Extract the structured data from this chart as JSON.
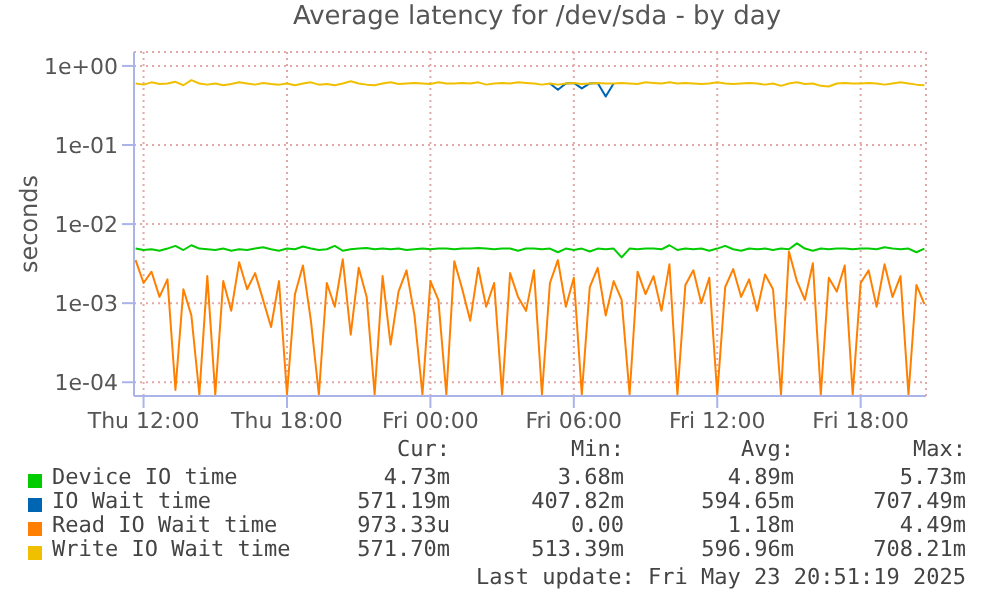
{
  "chart_data": {
    "type": "line",
    "title": "Average latency for /dev/sda - by day",
    "ylabel": "seconds",
    "log": "y",
    "grid": true,
    "legend": "bottom",
    "marker": "none",
    "line_style": "solid",
    "xlim": [
      "2025-05-22T11:36",
      "2025-05-23T20:44"
    ],
    "xticks": [
      {
        "value": "2025-05-22T12:00",
        "label": "Thu 12:00"
      },
      {
        "value": "2025-05-22T18:00",
        "label": "Thu 18:00"
      },
      {
        "value": "2025-05-23T00:00",
        "label": "Fri 00:00"
      },
      {
        "value": "2025-05-23T06:00",
        "label": "Fri 06:00"
      },
      {
        "value": "2025-05-23T12:00",
        "label": "Fri 12:00"
      },
      {
        "value": "2025-05-23T18:00",
        "label": "Fri 18:00"
      }
    ],
    "ylim": [
      6.7e-05,
      1.5
    ],
    "yticks": [
      {
        "value": 1,
        "label": "1e+00"
      },
      {
        "value": 0.1,
        "label": "1e-01"
      },
      {
        "value": 0.01,
        "label": "1e-02"
      },
      {
        "value": 0.001,
        "label": "1e-03"
      },
      {
        "value": 0.0001,
        "label": "1e-04"
      }
    ],
    "x": [
      "2025-05-22T11:40",
      "2025-05-22T12:00",
      "2025-05-22T12:20",
      "2025-05-22T12:40",
      "2025-05-22T13:00",
      "2025-05-22T13:20",
      "2025-05-22T13:40",
      "2025-05-22T14:00",
      "2025-05-22T14:20",
      "2025-05-22T14:40",
      "2025-05-22T15:00",
      "2025-05-22T15:20",
      "2025-05-22T15:40",
      "2025-05-22T16:00",
      "2025-05-22T16:20",
      "2025-05-22T16:40",
      "2025-05-22T17:00",
      "2025-05-22T17:20",
      "2025-05-22T17:40",
      "2025-05-22T18:00",
      "2025-05-22T18:20",
      "2025-05-22T18:40",
      "2025-05-22T19:00",
      "2025-05-22T19:20",
      "2025-05-22T19:40",
      "2025-05-22T20:00",
      "2025-05-22T20:20",
      "2025-05-22T20:40",
      "2025-05-22T21:00",
      "2025-05-22T21:20",
      "2025-05-22T21:40",
      "2025-05-22T22:00",
      "2025-05-22T22:20",
      "2025-05-22T22:40",
      "2025-05-22T23:00",
      "2025-05-22T23:20",
      "2025-05-22T23:40",
      "2025-05-23T00:00",
      "2025-05-23T00:20",
      "2025-05-23T00:40",
      "2025-05-23T01:00",
      "2025-05-23T01:20",
      "2025-05-23T01:40",
      "2025-05-23T02:00",
      "2025-05-23T02:20",
      "2025-05-23T02:40",
      "2025-05-23T03:00",
      "2025-05-23T03:20",
      "2025-05-23T03:40",
      "2025-05-23T04:00",
      "2025-05-23T04:20",
      "2025-05-23T04:40",
      "2025-05-23T05:00",
      "2025-05-23T05:20",
      "2025-05-23T05:40",
      "2025-05-23T06:00",
      "2025-05-23T06:20",
      "2025-05-23T06:40",
      "2025-05-23T07:00",
      "2025-05-23T07:20",
      "2025-05-23T07:40",
      "2025-05-23T08:00",
      "2025-05-23T08:20",
      "2025-05-23T08:40",
      "2025-05-23T09:00",
      "2025-05-23T09:20",
      "2025-05-23T09:40",
      "2025-05-23T10:00",
      "2025-05-23T10:20",
      "2025-05-23T10:40",
      "2025-05-23T11:00",
      "2025-05-23T11:20",
      "2025-05-23T11:40",
      "2025-05-23T12:00",
      "2025-05-23T12:20",
      "2025-05-23T12:40",
      "2025-05-23T13:00",
      "2025-05-23T13:20",
      "2025-05-23T13:40",
      "2025-05-23T14:00",
      "2025-05-23T14:20",
      "2025-05-23T14:40",
      "2025-05-23T15:00",
      "2025-05-23T15:20",
      "2025-05-23T15:40",
      "2025-05-23T16:00",
      "2025-05-23T16:20",
      "2025-05-23T16:40",
      "2025-05-23T17:00",
      "2025-05-23T17:20",
      "2025-05-23T17:40",
      "2025-05-23T18:00",
      "2025-05-23T18:20",
      "2025-05-23T18:40",
      "2025-05-23T19:00",
      "2025-05-23T19:20",
      "2025-05-23T19:40",
      "2025-05-23T20:00",
      "2025-05-23T20:20",
      "2025-05-23T20:40"
    ],
    "series": [
      {
        "name": "Device IO time",
        "color": "#00cc00",
        "values": [
          0.0049,
          0.0047,
          0.0048,
          0.0046,
          0.0049,
          0.0053,
          0.0047,
          0.0054,
          0.0049,
          0.0048,
          0.0047,
          0.0049,
          0.0046,
          0.0048,
          0.0047,
          0.0049,
          0.0051,
          0.0048,
          0.0046,
          0.0049,
          0.0048,
          0.0052,
          0.0049,
          0.0047,
          0.0048,
          0.0053,
          0.0046,
          0.0048,
          0.0049,
          0.005,
          0.0048,
          0.0049,
          0.0048,
          0.0049,
          0.0047,
          0.0048,
          0.0049,
          0.0048,
          0.0049,
          0.0049,
          0.0048,
          0.0049,
          0.0049,
          0.005,
          0.0049,
          0.0048,
          0.0049,
          0.0049,
          0.0046,
          0.0049,
          0.0049,
          0.0048,
          0.0049,
          0.0044,
          0.0049,
          0.0047,
          0.0049,
          0.0045,
          0.0049,
          0.0048,
          0.0049,
          0.0038,
          0.0049,
          0.0048,
          0.0049,
          0.0049,
          0.0048,
          0.0054,
          0.0047,
          0.0049,
          0.0048,
          0.0049,
          0.0046,
          0.0049,
          0.0053,
          0.0048,
          0.0046,
          0.0049,
          0.0048,
          0.0049,
          0.0047,
          0.0049,
          0.0048,
          0.0057,
          0.0049,
          0.0046,
          0.0049,
          0.0048,
          0.0049,
          0.0049,
          0.0048,
          0.0049,
          0.0049,
          0.0048,
          0.0051,
          0.0049,
          0.0048,
          0.0049,
          0.0044,
          0.0049
        ]
      },
      {
        "name": "IO Wait time",
        "color": "#0066b3",
        "values": [
          null,
          null,
          null,
          null,
          null,
          null,
          null,
          null,
          null,
          null,
          null,
          null,
          null,
          null,
          null,
          null,
          null,
          null,
          null,
          null,
          null,
          null,
          null,
          null,
          null,
          null,
          null,
          null,
          null,
          null,
          null,
          null,
          null,
          null,
          null,
          null,
          null,
          null,
          null,
          null,
          null,
          null,
          null,
          null,
          null,
          null,
          null,
          null,
          null,
          null,
          null,
          null,
          0.6,
          0.5,
          0.6,
          0.61,
          0.52,
          0.6,
          0.61,
          0.41,
          0.6,
          null,
          null,
          null,
          null,
          null,
          null,
          null,
          null,
          null,
          null,
          null,
          null,
          null,
          null,
          null,
          null,
          null,
          null,
          null,
          null,
          null,
          null,
          null,
          null,
          null,
          null,
          null,
          null,
          null,
          null,
          null,
          null,
          null,
          null,
          null,
          null,
          null,
          null,
          null
        ]
      },
      {
        "name": "Read IO Wait time",
        "color": "#ff8000",
        "values": [
          0.0035,
          0.0018,
          0.0025,
          0.0012,
          0.002,
          8e-05,
          0.0015,
          0.0007,
          7e-05,
          0.0022,
          7e-05,
          0.0019,
          0.0008,
          0.0033,
          0.0015,
          0.0024,
          0.0011,
          0.0005,
          0.0019,
          7e-05,
          0.0013,
          0.003,
          0.0006,
          7e-05,
          0.0018,
          0.0009,
          0.0036,
          0.0004,
          0.0028,
          0.0012,
          7e-05,
          0.0022,
          0.0003,
          0.0014,
          0.0026,
          0.0007,
          7e-05,
          0.0019,
          0.0011,
          7e-05,
          0.0034,
          0.0015,
          0.0006,
          0.0028,
          0.0009,
          0.0018,
          7e-05,
          0.0024,
          0.0012,
          0.0008,
          0.0026,
          7e-05,
          0.0018,
          0.0035,
          0.0009,
          0.0021,
          7e-05,
          0.0016,
          0.0028,
          0.0007,
          0.0019,
          0.0011,
          7e-05,
          0.0025,
          0.0013,
          0.0022,
          0.0008,
          0.0031,
          7e-05,
          0.0017,
          0.0026,
          0.001,
          0.0021,
          7e-05,
          0.0016,
          0.0027,
          0.0012,
          0.002,
          0.0008,
          0.0023,
          0.0015,
          7e-05,
          0.0045,
          0.0019,
          0.0011,
          0.0032,
          7e-05,
          0.0021,
          0.0014,
          0.003,
          7e-05,
          0.0018,
          0.0026,
          0.0009,
          0.0031,
          0.0012,
          0.0022,
          7e-05,
          0.0017,
          0.00097
        ]
      },
      {
        "name": "Write IO Wait time",
        "color": "#f0c000",
        "values": [
          0.6,
          0.58,
          0.62,
          0.59,
          0.6,
          0.63,
          0.57,
          0.66,
          0.6,
          0.58,
          0.6,
          0.57,
          0.59,
          0.62,
          0.6,
          0.58,
          0.61,
          0.59,
          0.58,
          0.6,
          0.57,
          0.6,
          0.62,
          0.58,
          0.59,
          0.57,
          0.6,
          0.64,
          0.6,
          0.58,
          0.57,
          0.6,
          0.62,
          0.59,
          0.6,
          0.61,
          0.6,
          0.59,
          0.62,
          0.6,
          0.6,
          0.61,
          0.6,
          0.62,
          0.58,
          0.6,
          0.61,
          0.6,
          0.62,
          0.61,
          0.6,
          0.58,
          0.6,
          0.58,
          0.6,
          0.61,
          0.59,
          0.6,
          0.61,
          0.6,
          0.6,
          0.61,
          0.6,
          0.59,
          0.62,
          0.61,
          0.6,
          0.62,
          0.6,
          0.61,
          0.6,
          0.59,
          0.6,
          0.62,
          0.6,
          0.59,
          0.6,
          0.61,
          0.6,
          0.58,
          0.6,
          0.56,
          0.6,
          0.62,
          0.59,
          0.6,
          0.56,
          0.55,
          0.6,
          0.61,
          0.6,
          0.6,
          0.61,
          0.6,
          0.58,
          0.6,
          0.62,
          0.6,
          0.58,
          0.57
        ]
      }
    ],
    "annotations": [
      "Cur:",
      "Min:",
      "Avg:",
      "Max:",
      "4.73m",
      "3.68m",
      "4.89m",
      "5.73m",
      "571.19m",
      "407.82m",
      "594.65m",
      "707.49m",
      "973.33u",
      "0.00",
      "1.18m",
      "4.49m",
      "571.70m",
      "513.39m",
      "596.96m",
      "708.21m",
      "Last update: Fri May 23 20:51:19 2025"
    ]
  }
}
